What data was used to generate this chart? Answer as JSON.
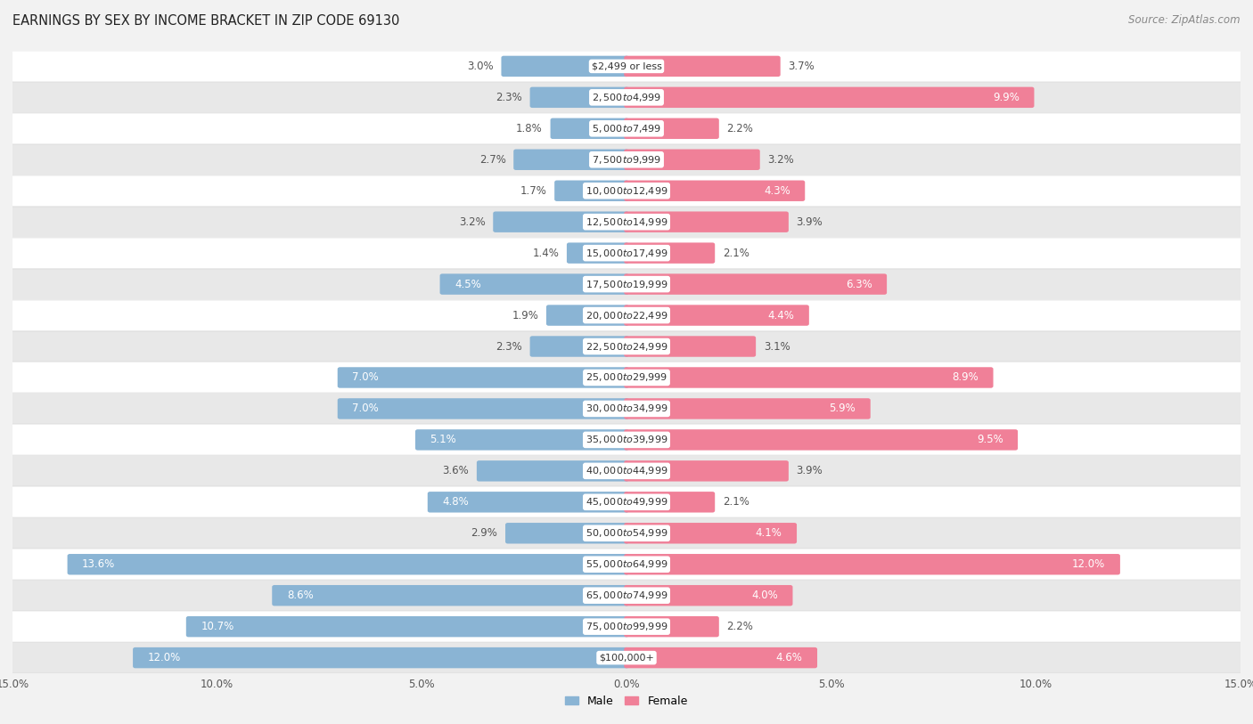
{
  "title": "EARNINGS BY SEX BY INCOME BRACKET IN ZIP CODE 69130",
  "source": "Source: ZipAtlas.com",
  "categories": [
    "$2,499 or less",
    "$2,500 to $4,999",
    "$5,000 to $7,499",
    "$7,500 to $9,999",
    "$10,000 to $12,499",
    "$12,500 to $14,999",
    "$15,000 to $17,499",
    "$17,500 to $19,999",
    "$20,000 to $22,499",
    "$22,500 to $24,999",
    "$25,000 to $29,999",
    "$30,000 to $34,999",
    "$35,000 to $39,999",
    "$40,000 to $44,999",
    "$45,000 to $49,999",
    "$50,000 to $54,999",
    "$55,000 to $64,999",
    "$65,000 to $74,999",
    "$75,000 to $99,999",
    "$100,000+"
  ],
  "male_values": [
    3.0,
    2.3,
    1.8,
    2.7,
    1.7,
    3.2,
    1.4,
    4.5,
    1.9,
    2.3,
    7.0,
    7.0,
    5.1,
    3.6,
    4.8,
    2.9,
    13.6,
    8.6,
    10.7,
    12.0
  ],
  "female_values": [
    3.7,
    9.9,
    2.2,
    3.2,
    4.3,
    3.9,
    2.1,
    6.3,
    4.4,
    3.1,
    8.9,
    5.9,
    9.5,
    3.9,
    2.1,
    4.1,
    12.0,
    4.0,
    2.2,
    4.6
  ],
  "male_color": "#8ab4d4",
  "female_color": "#f08098",
  "male_label": "Male",
  "female_label": "Female",
  "bg_color": "#f2f2f2",
  "row_bg_light": "#ffffff",
  "row_bg_dark": "#e8e8e8",
  "axis_max": 15.0,
  "label_fontsize": 8.5,
  "title_fontsize": 10.5,
  "source_fontsize": 8.5
}
